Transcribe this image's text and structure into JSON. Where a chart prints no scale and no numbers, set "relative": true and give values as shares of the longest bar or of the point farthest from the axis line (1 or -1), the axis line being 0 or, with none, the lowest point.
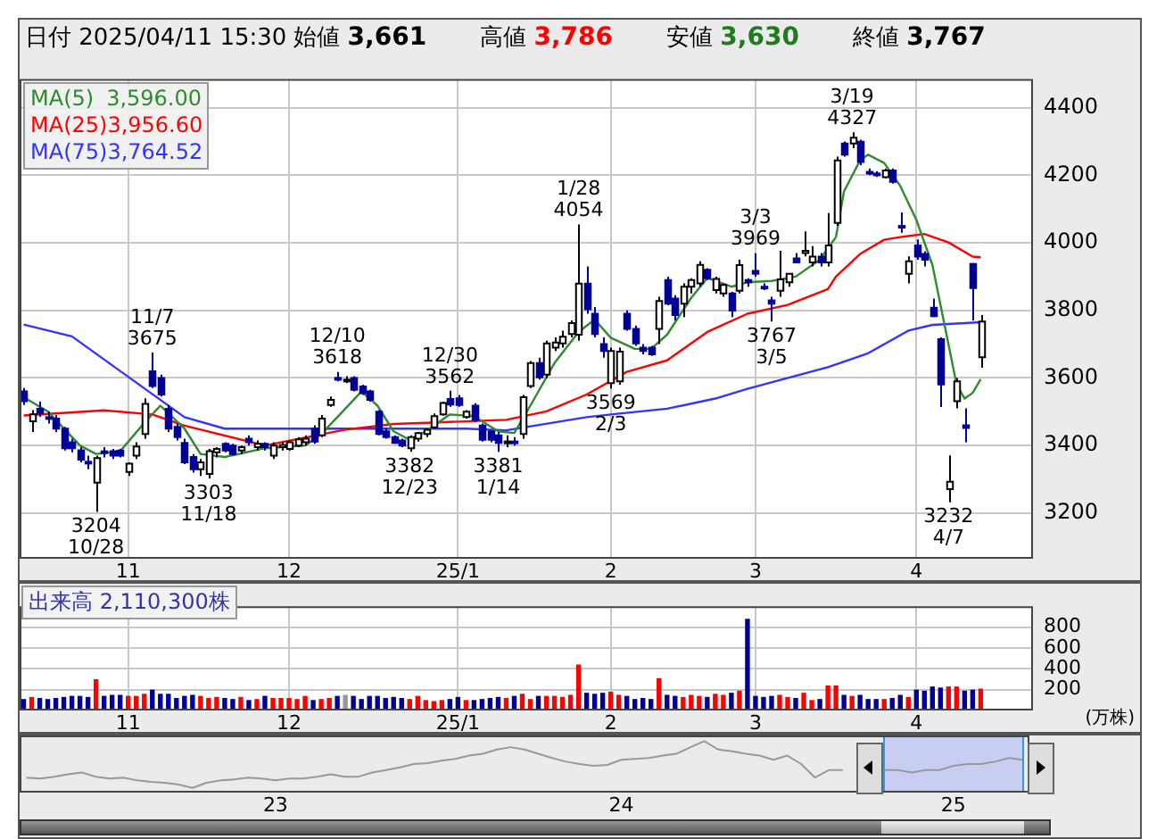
{
  "chart_data": [
    {
      "type": "candlestick",
      "title": "日付 2025/04/11 15:30",
      "categories": [
        null,
        null,
        null,
        null,
        null,
        null,
        null,
        null,
        null,
        null,
        null,
        null,
        null,
        "11",
        null,
        null,
        null,
        null,
        null,
        null,
        null,
        null,
        null,
        null,
        null,
        null,
        null,
        null,
        null,
        null,
        null,
        null,
        null,
        "12",
        null,
        null,
        null,
        null,
        null,
        null,
        null,
        null,
        null,
        null,
        null,
        null,
        null,
        null,
        null,
        null,
        null,
        null,
        null,
        null,
        "25/1",
        null,
        null,
        null,
        null,
        null,
        null,
        null,
        null,
        null,
        null,
        null,
        null,
        null,
        null,
        null,
        null,
        null,
        null,
        "2",
        null,
        null,
        null,
        null,
        null,
        null,
        null,
        null,
        null,
        null,
        null,
        null,
        null,
        null,
        null,
        null,
        null,
        "3",
        null,
        null,
        null,
        null,
        null,
        null,
        null,
        null,
        null,
        null,
        null,
        null,
        null,
        null,
        null,
        null,
        null,
        null,
        null,
        "4",
        null,
        null,
        null,
        null,
        null,
        null,
        null,
        null,
        null,
        null,
        null,
        null,
        null,
        null
      ],
      "ohlc": [
        [
          3560,
          3570,
          3520,
          3531
        ],
        [
          3472,
          3505,
          3440,
          3492
        ],
        [
          3509,
          3530,
          3485,
          3495
        ],
        [
          3484,
          3500,
          3465,
          3482
        ],
        [
          3480,
          3490,
          3440,
          3450
        ],
        [
          3450,
          3455,
          3385,
          3392
        ],
        [
          3410,
          3420,
          3380,
          3392
        ],
        [
          3386,
          3395,
          3350,
          3358
        ],
        [
          3352,
          3370,
          3330,
          3350
        ],
        [
          3290,
          3370,
          3204,
          3363
        ],
        [
          3383,
          3395,
          3365,
          3378
        ],
        [
          3383,
          3390,
          3360,
          3370
        ],
        [
          3385,
          3390,
          3365,
          3370
        ],
        [
          3322,
          3350,
          3310,
          3346
        ],
        [
          3370,
          3410,
          3360,
          3397
        ],
        [
          3434,
          3540,
          3420,
          3523
        ],
        [
          3620,
          3675,
          3570,
          3576
        ],
        [
          3600,
          3610,
          3545,
          3551
        ],
        [
          3509,
          3520,
          3440,
          3450
        ],
        [
          3455,
          3465,
          3415,
          3425
        ],
        [
          3408,
          3420,
          3345,
          3350
        ],
        [
          3366,
          3375,
          3320,
          3330
        ],
        [
          3330,
          3360,
          3310,
          3350
        ],
        [
          3316,
          3390,
          3303,
          3383
        ],
        [
          3380,
          3395,
          3365,
          3390
        ],
        [
          3405,
          3410,
          3380,
          3385
        ],
        [
          3400,
          3405,
          3370,
          3375
        ],
        [
          3385,
          3400,
          3375,
          3395
        ],
        [
          3420,
          3430,
          3400,
          3410
        ],
        [
          3395,
          3415,
          3385,
          3405
        ],
        [
          3405,
          3410,
          3385,
          3395
        ],
        [
          3370,
          3410,
          3360,
          3400
        ],
        [
          3395,
          3410,
          3385,
          3402
        ],
        [
          3390,
          3415,
          3385,
          3410
        ],
        [
          3400,
          3425,
          3395,
          3418
        ],
        [
          3410,
          3430,
          3400,
          3420
        ],
        [
          3450,
          3460,
          3405,
          3412
        ],
        [
          3430,
          3490,
          3425,
          3480
        ],
        [
          3520,
          3545,
          3515,
          3535
        ],
        [
          3600,
          3618,
          3590,
          3595
        ],
        [
          3595,
          3605,
          3585,
          3595
        ],
        [
          3600,
          3605,
          3560,
          3565
        ],
        [
          3575,
          3580,
          3550,
          3555
        ],
        [
          3560,
          3565,
          3530,
          3535
        ],
        [
          3500,
          3505,
          3430,
          3434
        ],
        [
          3442,
          3450,
          3420,
          3425
        ],
        [
          3425,
          3430,
          3405,
          3408
        ],
        [
          3415,
          3420,
          3395,
          3400
        ],
        [
          3392,
          3430,
          3382,
          3425
        ],
        [
          3420,
          3440,
          3412,
          3437
        ],
        [
          3434,
          3450,
          3425,
          3447
        ],
        [
          3454,
          3495,
          3450,
          3487
        ],
        [
          3492,
          3530,
          3488,
          3526
        ],
        [
          3538,
          3562,
          3515,
          3521
        ],
        [
          3540,
          3550,
          3515,
          3520
        ],
        [
          3484,
          3505,
          3480,
          3500
        ],
        [
          3518,
          3525,
          3470,
          3476
        ],
        [
          3459,
          3465,
          3412,
          3417
        ],
        [
          3442,
          3445,
          3410,
          3417
        ],
        [
          3430,
          3440,
          3381,
          3408
        ],
        [
          3410,
          3430,
          3395,
          3412
        ],
        [
          3412,
          3425,
          3400,
          3410
        ],
        [
          3434,
          3550,
          3420,
          3543
        ],
        [
          3576,
          3650,
          3570,
          3644
        ],
        [
          3644,
          3660,
          3595,
          3602
        ],
        [
          3610,
          3710,
          3600,
          3702
        ],
        [
          3690,
          3720,
          3680,
          3705
        ],
        [
          3702,
          3740,
          3690,
          3722
        ],
        [
          3730,
          3770,
          3720,
          3762
        ],
        [
          3728,
          4054,
          3710,
          3879
        ],
        [
          3879,
          3930,
          3790,
          3803
        ],
        [
          3790,
          3810,
          3720,
          3730
        ],
        [
          3700,
          3720,
          3660,
          3680
        ],
        [
          3585,
          3690,
          3569,
          3680
        ],
        [
          3590,
          3690,
          3580,
          3678
        ],
        [
          3790,
          3800,
          3740,
          3745
        ],
        [
          3745,
          3755,
          3695,
          3702
        ],
        [
          3690,
          3700,
          3670,
          3680
        ],
        [
          3690,
          3695,
          3665,
          3670
        ],
        [
          3745,
          3840,
          3700,
          3828
        ],
        [
          3890,
          3900,
          3815,
          3820
        ],
        [
          3835,
          3845,
          3770,
          3786
        ],
        [
          3820,
          3880,
          3780,
          3870
        ],
        [
          3870,
          3895,
          3850,
          3890
        ],
        [
          3880,
          3945,
          3870,
          3935
        ],
        [
          3920,
          3925,
          3890,
          3895
        ],
        [
          3860,
          3900,
          3850,
          3893
        ],
        [
          3850,
          3880,
          3840,
          3875
        ],
        [
          3850,
          3855,
          3780,
          3799
        ],
        [
          3858,
          3950,
          3850,
          3934
        ],
        [
          3890,
          3895,
          3870,
          3883
        ],
        [
          3917,
          3969,
          3900,
          3908
        ],
        [
          3870,
          3880,
          3860,
          3866
        ],
        [
          3830,
          3840,
          3767,
          3820
        ],
        [
          3858,
          3976,
          3840,
          3892
        ],
        [
          3883,
          3910,
          3870,
          3908
        ],
        [
          3954,
          3970,
          3940,
          3942
        ],
        [
          3970,
          4034,
          3960,
          3976
        ],
        [
          3942,
          3990,
          3930,
          3959
        ],
        [
          3959,
          3970,
          3930,
          3942
        ],
        [
          3942,
          4088,
          3930,
          3992
        ],
        [
          4059,
          4255,
          4050,
          4244
        ],
        [
          4294,
          4300,
          4255,
          4261
        ],
        [
          4294,
          4327,
          4280,
          4311
        ],
        [
          4299,
          4305,
          4230,
          4239
        ],
        [
          4210,
          4220,
          4200,
          4205
        ],
        [
          4205,
          4212,
          4195,
          4202
        ],
        [
          4194,
          4220,
          4190,
          4214
        ],
        [
          4214,
          4220,
          4175,
          4180
        ],
        [
          4050,
          4090,
          4030,
          4048
        ],
        [
          3908,
          3960,
          3880,
          3945
        ],
        [
          3992,
          4010,
          3950,
          3959
        ],
        [
          3967,
          3975,
          3930,
          3950
        ],
        [
          3808,
          3835,
          3780,
          3783
        ],
        [
          3715,
          3720,
          3514,
          3581
        ],
        [
          3271,
          3371,
          3232,
          3293
        ],
        [
          3531,
          3600,
          3510,
          3590
        ],
        [
          3460,
          3510,
          3410,
          3452
        ],
        [
          3937,
          3940,
          3770,
          3866
        ],
        [
          3661,
          3786,
          3630,
          3767
        ],
        null,
        null,
        null,
        null,
        null,
        null
      ],
      "series": [
        {
          "name": "MA(5)",
          "type": "line",
          "color": "#2e8b2e",
          "values": [
            3543,
            null,
            null,
            3501,
            null,
            null,
            null,
            3400,
            null,
            3375,
            null,
            null,
            3383,
            null,
            null,
            3467,
            null,
            3518,
            null,
            null,
            3450,
            null,
            3375,
            null,
            null,
            3366,
            null,
            null,
            null,
            null,
            3392,
            null,
            null,
            null,
            null,
            3400,
            null,
            3434,
            null,
            null,
            3509,
            null,
            3560,
            null,
            3518,
            null,
            3442,
            null,
            3417,
            null,
            3442,
            null,
            null,
            3492,
            null,
            null,
            3487,
            null,
            null,
            3442,
            null,
            3437,
            null,
            3518,
            null,
            null,
            3644,
            null,
            null,
            3736,
            null,
            3773,
            null,
            3719,
            null,
            null,
            3686,
            null,
            3686,
            null,
            3728,
            null,
            null,
            3837,
            null,
            3896,
            null,
            null,
            3870,
            null,
            3883,
            null,
            null,
            3887,
            null,
            null,
            3900,
            null,
            null,
            3950,
            null,
            4017,
            4152,
            null,
            4244,
            4261,
            null,
            4236,
            null,
            4168,
            null,
            4068,
            null,
            3934,
            3816,
            3699,
            3581,
            3539,
            3556,
            3596,
            null,
            null,
            null,
            null,
            null,
            null
          ]
        },
        {
          "name": "MA(25)",
          "type": "line",
          "color": "#ff0000",
          "values": [
            3489,
            null,
            null,
            null,
            null,
            null,
            null,
            null,
            null,
            null,
            3504,
            null,
            null,
            null,
            null,
            null,
            3492,
            null,
            null,
            null,
            3459,
            null,
            null,
            null,
            null,
            null,
            null,
            null,
            null,
            null,
            3400,
            null,
            null,
            null,
            null,
            null,
            null,
            null,
            null,
            null,
            3447,
            null,
            null,
            null,
            null,
            null,
            3464,
            null,
            null,
            null,
            3467,
            null,
            null,
            null,
            null,
            null,
            null,
            null,
            null,
            null,
            3476,
            null,
            null,
            null,
            null,
            3501,
            null,
            null,
            null,
            null,
            3551,
            null,
            null,
            null,
            null,
            3618,
            null,
            null,
            null,
            null,
            3652,
            null,
            null,
            null,
            null,
            3736,
            null,
            null,
            null,
            null,
            3790,
            null,
            null,
            null,
            null,
            3816,
            null,
            null,
            null,
            null,
            3863,
            3900,
            null,
            null,
            3967,
            null,
            null,
            4009,
            null,
            4017,
            null,
            null,
            4026,
            null,
            null,
            4001,
            null,
            null,
            3959,
            3957,
            null,
            null,
            null,
            null,
            null,
            null
          ]
        },
        {
          "name": "MA(75)",
          "type": "line",
          "color": "#3333ff",
          "values": [
            3758,
            null,
            null,
            null,
            null,
            null,
            3723,
            null,
            null,
            null,
            null,
            null,
            null,
            null,
            null,
            null,
            null,
            null,
            null,
            null,
            3484,
            null,
            null,
            null,
            null,
            3450,
            null,
            null,
            null,
            null,
            null,
            null,
            null,
            null,
            null,
            null,
            null,
            null,
            null,
            null,
            null,
            null,
            null,
            null,
            null,
            null,
            null,
            null,
            null,
            null,
            null,
            null,
            null,
            null,
            null,
            3450,
            null,
            null,
            null,
            null,
            3445,
            null,
            null,
            null,
            null,
            null,
            null,
            null,
            null,
            null,
            3484,
            null,
            null,
            3492,
            null,
            null,
            null,
            null,
            null,
            null,
            3509,
            null,
            null,
            null,
            null,
            null,
            3539,
            null,
            null,
            null,
            3568,
            null,
            null,
            null,
            null,
            null,
            null,
            null,
            null,
            null,
            3632,
            null,
            null,
            null,
            null,
            3673,
            null,
            null,
            null,
            null,
            3740,
            null,
            null,
            3757,
            null,
            null,
            null,
            null,
            null,
            3765,
            null,
            null,
            null,
            null,
            null,
            null
          ]
        }
      ],
      "ylim": [
        3065,
        4485
      ],
      "yticks": [
        3200,
        3400,
        3600,
        3800,
        4000,
        4200,
        4400
      ],
      "grid": true,
      "legend": "top left",
      "annotations": [
        "始値 3,661",
        "高値 3,786",
        "安値 3,630",
        "終値 3,767",
        "3,596.00",
        "3,956.60",
        "3,764.52",
        {
          "text": "11/7\n3675",
          "y": 3675
        },
        {
          "text": "12/10\n3618",
          "y": 3618
        },
        {
          "text": "12/30\n3562",
          "y": 3562
        },
        {
          "text": "1/28\n4054",
          "y": 4054
        },
        {
          "text": "3/3\n3969",
          "y": 3969
        },
        {
          "text": "3/19\n4327",
          "y": 4327
        },
        {
          "text": "3204\n10/28",
          "y": 3204
        },
        {
          "text": "3303\n11/18",
          "y": 3303
        },
        {
          "text": "3382\n12/23",
          "y": 3382
        },
        {
          "text": "3381\n1/14",
          "y": 3381
        },
        {
          "text": "3569\n2/3",
          "y": 3569
        },
        {
          "text": "3767\n3/5",
          "y": 3767
        },
        {
          "text": "3232\n4/7",
          "y": 3232
        }
      ]
    },
    {
      "type": "bar",
      "title": "出来高 2,110,300株",
      "ylabel": "(万株)",
      "categories": [
        null,
        null,
        null,
        null,
        null,
        null,
        null,
        null,
        null,
        null,
        null,
        null,
        null,
        "11",
        null,
        null,
        null,
        null,
        null,
        null,
        null,
        null,
        null,
        null,
        null,
        null,
        null,
        null,
        null,
        null,
        null,
        null,
        null,
        "12",
        null,
        null,
        null,
        null,
        null,
        null,
        null,
        null,
        null,
        null,
        null,
        null,
        null,
        null,
        null,
        null,
        null,
        null,
        null,
        null,
        "25/1",
        null,
        null,
        null,
        null,
        null,
        null,
        null,
        null,
        null,
        null,
        null,
        null,
        null,
        null,
        null,
        null,
        null,
        null,
        "2",
        null,
        null,
        null,
        null,
        null,
        null,
        null,
        null,
        null,
        null,
        null,
        null,
        null,
        null,
        null,
        null,
        null,
        "3",
        null,
        null,
        null,
        null,
        null,
        null,
        null,
        null,
        null,
        null,
        null,
        null,
        null,
        null,
        null,
        null,
        null,
        null,
        null,
        "4",
        null,
        null,
        null,
        null,
        null,
        null,
        null,
        null,
        null,
        null,
        null,
        null,
        null,
        null
      ],
      "values": [
        110,
        130,
        120,
        110,
        120,
        130,
        140,
        140,
        130,
        300,
        140,
        150,
        150,
        140,
        140,
        160,
        200,
        160,
        160,
        120,
        140,
        150,
        140,
        120,
        130,
        120,
        110,
        130,
        100,
        110,
        140,
        120,
        120,
        120,
        110,
        140,
        100,
        110,
        120,
        140,
        150,
        140,
        110,
        140,
        140,
        120,
        130,
        120,
        110,
        140,
        100,
        90,
        100,
        110,
        130,
        100,
        100,
        110,
        120,
        130,
        120,
        140,
        160,
        110,
        140,
        140,
        140,
        130,
        150,
        440,
        170,
        160,
        170,
        180,
        150,
        140,
        110,
        120,
        110,
        310,
        150,
        140,
        130,
        150,
        140,
        130,
        160,
        150,
        170,
        190,
        880,
        140,
        130,
        140,
        150,
        130,
        120,
        170,
        100,
        110,
        240,
        240,
        150,
        140,
        150,
        110,
        110,
        110,
        120,
        150,
        130,
        200,
        190,
        230,
        220,
        230,
        230,
        190,
        200,
        210,
        null,
        null,
        null,
        null,
        null,
        null
      ],
      "colors": [
        "#000099",
        "#ff0000",
        "#000099",
        "#000099",
        "#000099",
        "#000099",
        "#000099",
        "#000099",
        "#000099",
        "#ff0000",
        "#000099",
        "#000099",
        "#000099",
        "#ff0000",
        "#ff0000",
        "#ff0000",
        "#000099",
        "#000099",
        "#000099",
        "#000099",
        "#000099",
        "#000099",
        "#ff0000",
        "#ff0000",
        "#ff0000",
        "#000099",
        "#000099",
        "#ff0000",
        "#000099",
        "#ff0000",
        "#000099",
        "#ff0000",
        "#ff0000",
        "#ff0000",
        "#ff0000",
        "#ff0000",
        "#000099",
        "#ff0000",
        "#ff0000",
        "#000099",
        "#999999",
        "#000099",
        "#000099",
        "#000099",
        "#000099",
        "#000099",
        "#000099",
        "#000099",
        "#ff0000",
        "#ff0000",
        "#ff0000",
        "#ff0000",
        "#ff0000",
        "#000099",
        "#000099",
        "#ff0000",
        "#000099",
        "#000099",
        "#000099",
        "#000099",
        "#ff0000",
        "#000099",
        "#ff0000",
        "#ff0000",
        "#000099",
        "#ff0000",
        "#ff0000",
        "#ff0000",
        "#ff0000",
        "#ff0000",
        "#000099",
        "#000099",
        "#000099",
        "#ff0000",
        "#ff0000",
        "#000099",
        "#000099",
        "#000099",
        "#000099",
        "#ff0000",
        "#000099",
        "#000099",
        "#ff0000",
        "#ff0000",
        "#ff0000",
        "#000099",
        "#ff0000",
        "#ff0000",
        "#000099",
        "#ff0000",
        "#000099",
        "#000099",
        "#000099",
        "#000099",
        "#ff0000",
        "#ff0000",
        "#000099",
        "#ff0000",
        "#ff0000",
        "#000099",
        "#ff0000",
        "#ff0000",
        "#000099",
        "#ff0000",
        "#000099",
        "#000099",
        "#000099",
        "#ff0000",
        "#000099",
        "#000099",
        "#ff0000",
        "#000099",
        "#000099",
        "#000099",
        "#000099",
        "#ff0000",
        "#ff0000",
        "#000099",
        "#000099",
        "#ff0000",
        null,
        null,
        null,
        null,
        null,
        null
      ],
      "ylim": [
        0,
        1000
      ],
      "yticks": [
        200,
        400,
        600,
        800
      ],
      "grid": true
    },
    {
      "type": "line",
      "relative": true,
      "color": "#999999",
      "categories": [
        null,
        null,
        null,
        null,
        null,
        null,
        null,
        null,
        null,
        null,
        null,
        null,
        null,
        null,
        null,
        null,
        null,
        null,
        "23",
        null,
        null,
        null,
        null,
        null,
        null,
        null,
        null,
        null,
        null,
        null,
        null,
        null,
        null,
        null,
        null,
        null,
        null,
        null,
        null,
        null,
        null,
        null,
        null,
        "24",
        null,
        null,
        null,
        null,
        null,
        null,
        null,
        null,
        null,
        null,
        null,
        null,
        null,
        null,
        null,
        null,
        null,
        null,
        null,
        null,
        null,
        null,
        null,
        "25",
        null,
        null,
        null,
        null,
        null
      ],
      "values": [
        0.22,
        0.2,
        0.24,
        0.29,
        0.33,
        0.24,
        0.2,
        0.22,
        0.16,
        0.13,
        0.11,
        0.07,
        0,
        0.11,
        0.16,
        0.18,
        0.22,
        0.2,
        0.16,
        0.2,
        0.2,
        0.24,
        0.29,
        0.24,
        0.24,
        0.33,
        0.38,
        0.44,
        0.51,
        0.53,
        0.58,
        0.62,
        0.69,
        0.73,
        0.82,
        0.87,
        0.82,
        0.73,
        0.64,
        0.56,
        0.51,
        0.47,
        0.49,
        0.6,
        0.62,
        0.64,
        0.69,
        0.73,
        0.87,
        1,
        0.82,
        0.78,
        0.73,
        0.69,
        0.6,
        0.69,
        0.51,
        0.22,
        0.38,
        0.38,
        null,
        null,
        0.38,
        0.38,
        0.33,
        0.38,
        0.38,
        0.47,
        0.51,
        0.51,
        0.56,
        0.64,
        0.6
      ]
    }
  ]
}
